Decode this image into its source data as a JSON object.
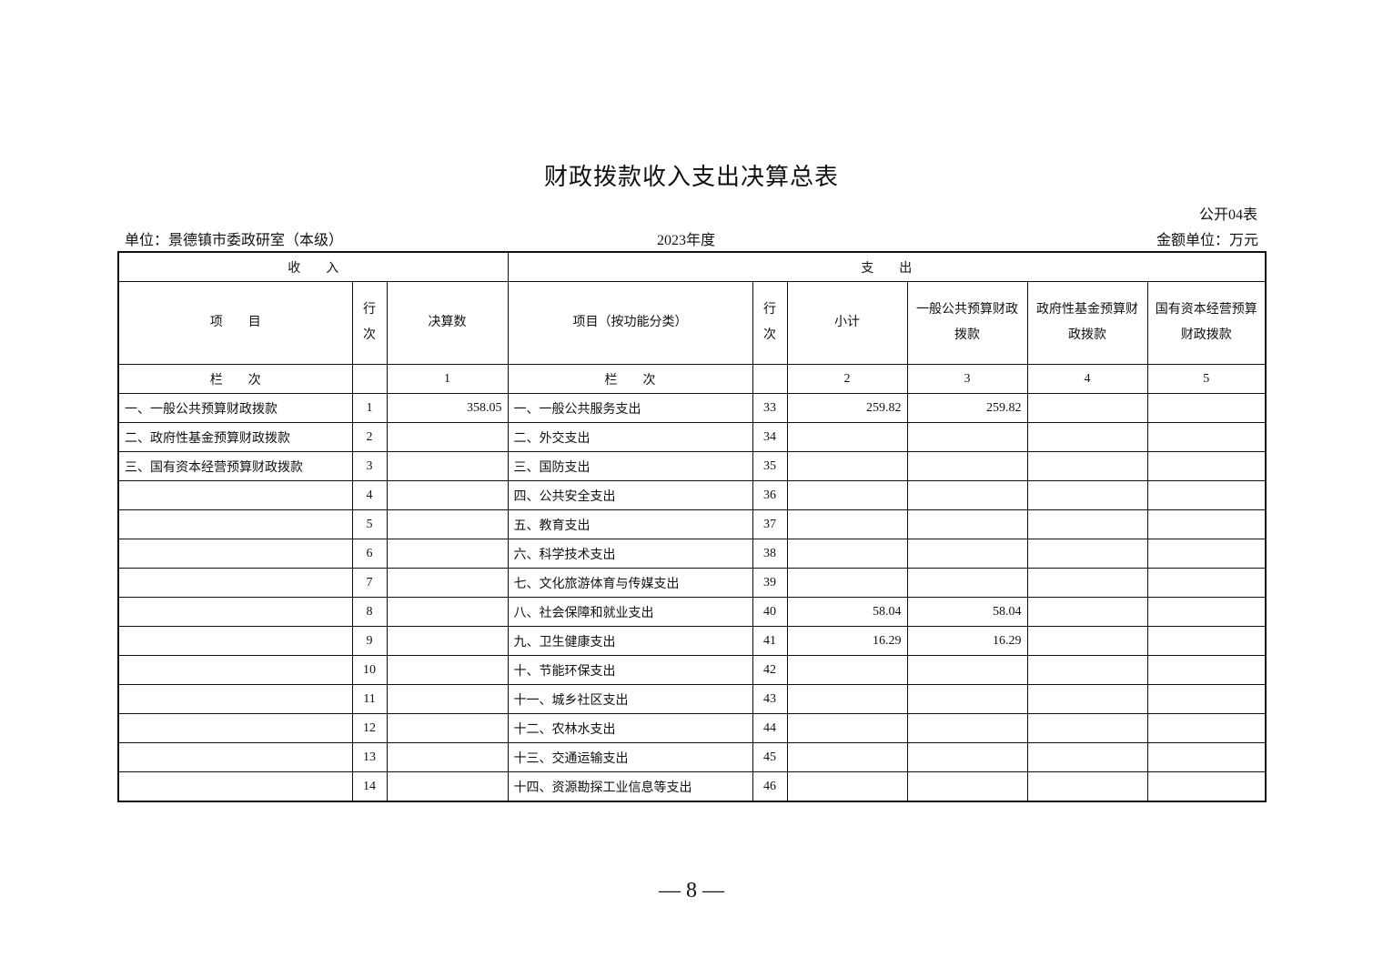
{
  "title": "财政拨款收入支出决算总表",
  "table_no": "公开04表",
  "unit": "单位：景德镇市委政研室（本级）",
  "year": "2023年度",
  "amount_unit": "金额单位：万元",
  "headers": {
    "income": "收　　入",
    "expense": "支　　出",
    "item": "项　　目",
    "row_no": "行次",
    "amount": "决算数",
    "func_item": "项目（按功能分类）",
    "subtotal": "小计",
    "general": "一般公共预算财政拨款",
    "fund": "政府性基金预算财政拨款",
    "state": "国有资本经营预算财政拨款",
    "col_label": "栏　　次",
    "col1": "1",
    "col2": "2",
    "col3": "3",
    "col4": "4",
    "col5": "5"
  },
  "rows": [
    {
      "income_item": "一、一般公共预算财政拨款",
      "income_no": "1",
      "income_amount": "358.05",
      "exp_item": "一、一般公共服务支出",
      "exp_no": "33",
      "subtotal": "259.82",
      "general": "259.82",
      "fund": "",
      "state": ""
    },
    {
      "income_item": "二、政府性基金预算财政拨款",
      "income_no": "2",
      "income_amount": "",
      "exp_item": "二、外交支出",
      "exp_no": "34",
      "subtotal": "",
      "general": "",
      "fund": "",
      "state": ""
    },
    {
      "income_item": "三、国有资本经营预算财政拨款",
      "income_no": "3",
      "income_amount": "",
      "exp_item": "三、国防支出",
      "exp_no": "35",
      "subtotal": "",
      "general": "",
      "fund": "",
      "state": ""
    },
    {
      "income_item": "",
      "income_no": "4",
      "income_amount": "",
      "exp_item": "四、公共安全支出",
      "exp_no": "36",
      "subtotal": "",
      "general": "",
      "fund": "",
      "state": ""
    },
    {
      "income_item": "",
      "income_no": "5",
      "income_amount": "",
      "exp_item": "五、教育支出",
      "exp_no": "37",
      "subtotal": "",
      "general": "",
      "fund": "",
      "state": ""
    },
    {
      "income_item": "",
      "income_no": "6",
      "income_amount": "",
      "exp_item": "六、科学技术支出",
      "exp_no": "38",
      "subtotal": "",
      "general": "",
      "fund": "",
      "state": ""
    },
    {
      "income_item": "",
      "income_no": "7",
      "income_amount": "",
      "exp_item": "七、文化旅游体育与传媒支出",
      "exp_no": "39",
      "subtotal": "",
      "general": "",
      "fund": "",
      "state": ""
    },
    {
      "income_item": "",
      "income_no": "8",
      "income_amount": "",
      "exp_item": "八、社会保障和就业支出",
      "exp_no": "40",
      "subtotal": "58.04",
      "general": "58.04",
      "fund": "",
      "state": ""
    },
    {
      "income_item": "",
      "income_no": "9",
      "income_amount": "",
      "exp_item": "九、卫生健康支出",
      "exp_no": "41",
      "subtotal": "16.29",
      "general": "16.29",
      "fund": "",
      "state": ""
    },
    {
      "income_item": "",
      "income_no": "10",
      "income_amount": "",
      "exp_item": "十、节能环保支出",
      "exp_no": "42",
      "subtotal": "",
      "general": "",
      "fund": "",
      "state": ""
    },
    {
      "income_item": "",
      "income_no": "11",
      "income_amount": "",
      "exp_item": "十一、城乡社区支出",
      "exp_no": "43",
      "subtotal": "",
      "general": "",
      "fund": "",
      "state": ""
    },
    {
      "income_item": "",
      "income_no": "12",
      "income_amount": "",
      "exp_item": "十二、农林水支出",
      "exp_no": "44",
      "subtotal": "",
      "general": "",
      "fund": "",
      "state": ""
    },
    {
      "income_item": "",
      "income_no": "13",
      "income_amount": "",
      "exp_item": "十三、交通运输支出",
      "exp_no": "45",
      "subtotal": "",
      "general": "",
      "fund": "",
      "state": ""
    },
    {
      "income_item": "",
      "income_no": "14",
      "income_amount": "",
      "exp_item": "十四、资源勘探工业信息等支出",
      "exp_no": "46",
      "subtotal": "",
      "general": "",
      "fund": "",
      "state": ""
    }
  ],
  "page_number": "— 8 —"
}
